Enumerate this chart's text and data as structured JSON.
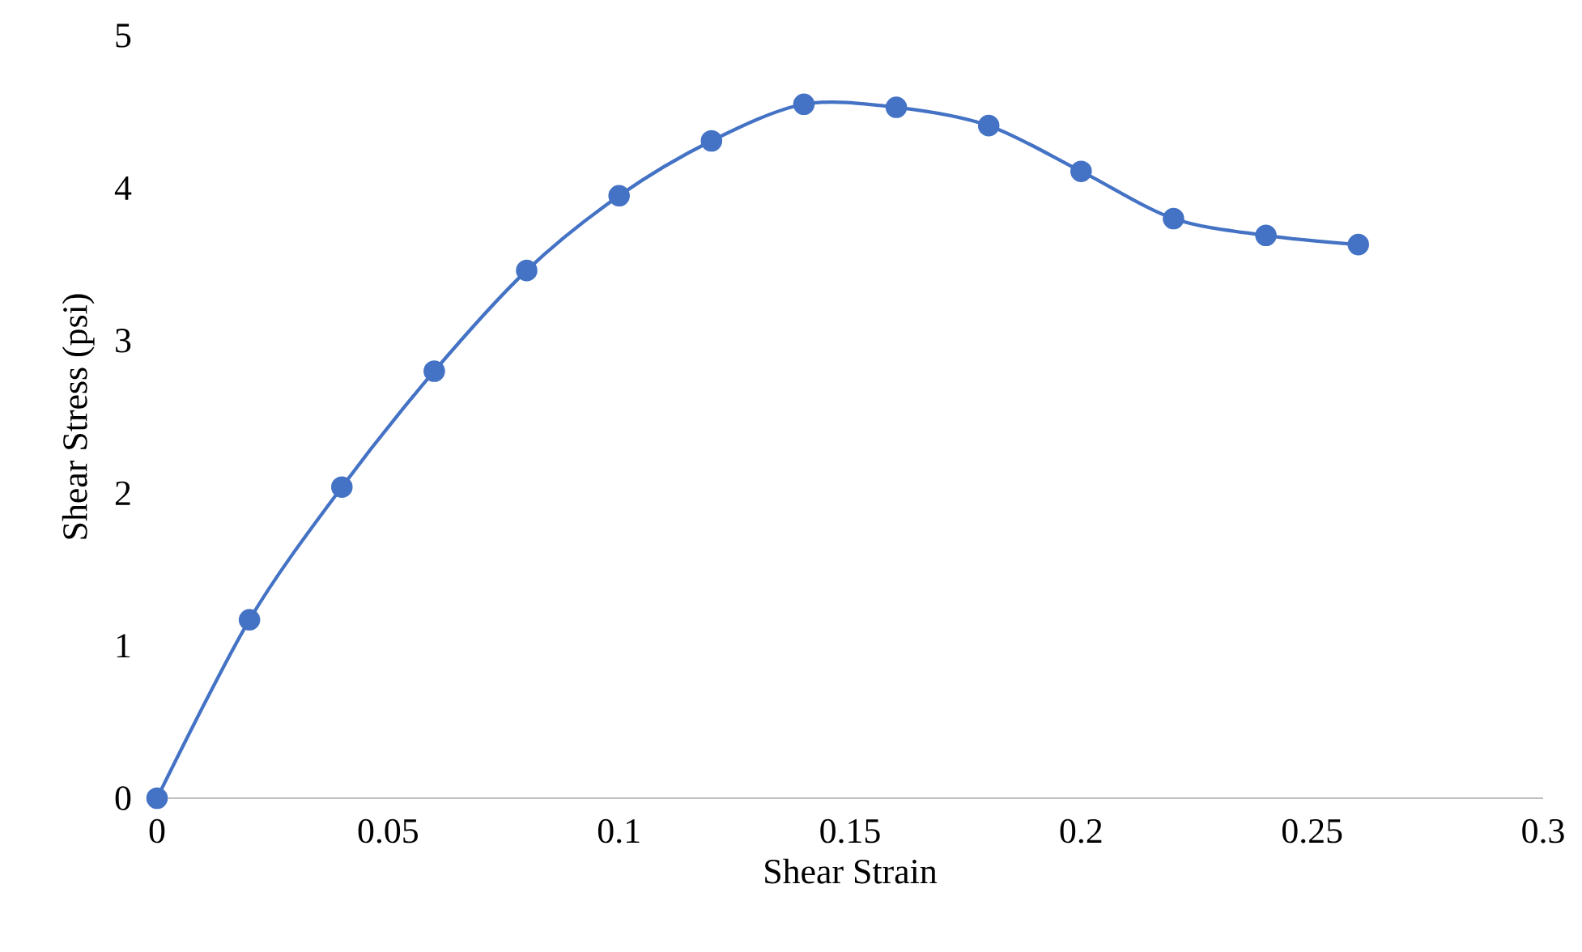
{
  "chart_data": {
    "type": "line",
    "xlabel": "Shear Strain",
    "ylabel": "Shear Stress (psi)",
    "x": [
      0,
      0.02,
      0.04,
      0.06,
      0.08,
      0.1,
      0.12,
      0.14,
      0.16,
      0.18,
      0.2,
      0.22,
      0.24,
      0.26
    ],
    "series": [
      {
        "color": "#4472c4",
        "values": [
          0,
          1.17,
          2.04,
          2.8,
          3.46,
          3.95,
          4.31,
          4.55,
          4.53,
          4.41,
          4.11,
          3.8,
          3.69,
          3.63
        ]
      }
    ],
    "xlim": [
      0,
      0.3
    ],
    "ylim": [
      0,
      5
    ],
    "xticks": [
      0,
      0.05,
      0.1,
      0.15,
      0.2,
      0.25,
      0.3
    ],
    "yticks": [
      0,
      1,
      2,
      3,
      4,
      5
    ],
    "grid": false,
    "marker": "circle",
    "line_style": "solid"
  }
}
